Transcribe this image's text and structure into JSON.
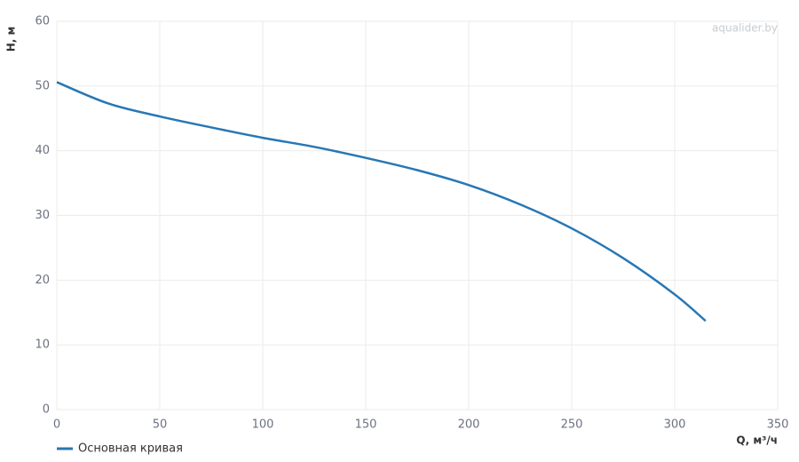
{
  "chart_data": {
    "type": "line",
    "xlabel": "Q, м³/ч",
    "ylabel": "H, м",
    "watermark": "aqualider.by",
    "x": [
      0,
      25,
      50,
      75,
      100,
      125,
      150,
      175,
      200,
      225,
      250,
      275,
      300,
      315
    ],
    "series": [
      {
        "name": "Основная кривая",
        "color": "#2777b4",
        "values": [
          50.6,
          47.3,
          45.3,
          43.6,
          42.0,
          40.6,
          38.9,
          37.0,
          34.7,
          31.7,
          28.0,
          23.4,
          17.8,
          13.7
        ]
      }
    ],
    "xlim": [
      0,
      350
    ],
    "ylim": [
      0,
      60
    ],
    "xticks": [
      0,
      50,
      100,
      150,
      200,
      250,
      300,
      350
    ],
    "yticks": [
      0,
      10,
      20,
      30,
      40,
      50,
      60
    ],
    "grid": true
  }
}
